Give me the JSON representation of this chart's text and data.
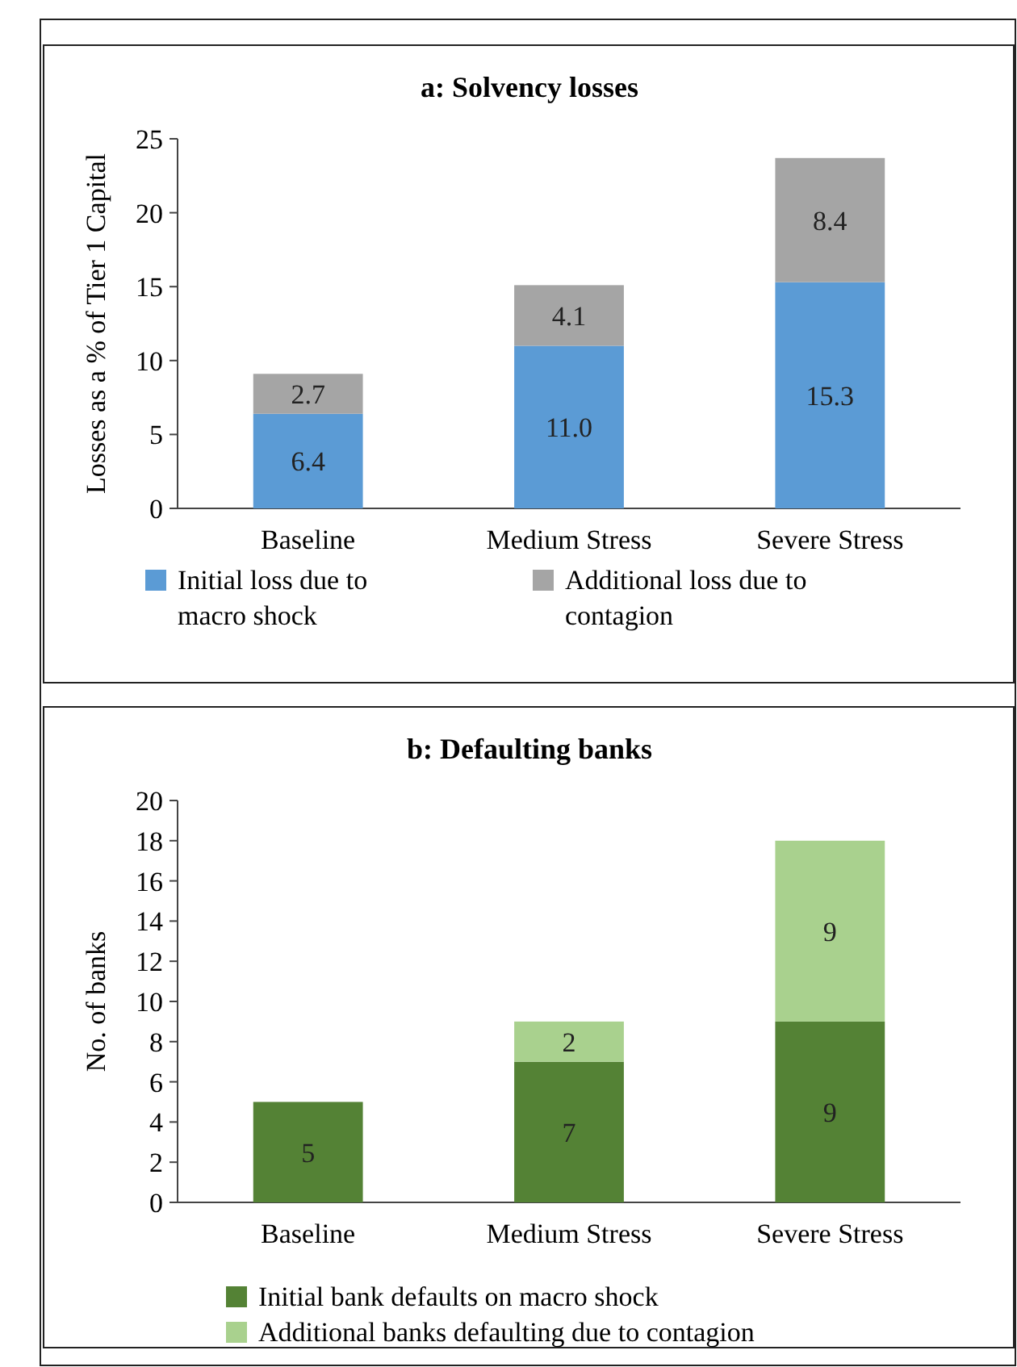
{
  "chart_data": [
    {
      "type": "bar",
      "title": "a: Solvency losses",
      "ylabel": "Losses as a % of Tier 1 Capital",
      "categories": [
        "Baseline",
        "Medium Stress",
        "Severe Stress"
      ],
      "stacked": true,
      "data_labels": true,
      "legend": "bottom",
      "ylim": [
        0,
        25
      ],
      "yticks": [
        0,
        5,
        10,
        15,
        20,
        25
      ],
      "series": [
        {
          "name": "Initial loss due to macro shock",
          "color": "#5b9bd5",
          "values": [
            6.4,
            11.0,
            15.3
          ],
          "value_labels": [
            "6.4",
            "11.0",
            "15.3"
          ]
        },
        {
          "name": "Additional loss due to contagion",
          "color": "#a5a5a5",
          "values": [
            2.7,
            4.1,
            8.4
          ],
          "value_labels": [
            "2.7",
            "4.1",
            "8.4"
          ]
        }
      ]
    },
    {
      "type": "bar",
      "title": "b: Defaulting banks",
      "ylabel": "No. of banks",
      "categories": [
        "Baseline",
        "Medium Stress",
        "Severe Stress"
      ],
      "stacked": true,
      "data_labels": true,
      "legend": "bottom",
      "ylim": [
        0,
        20
      ],
      "yticks": [
        0,
        2,
        4,
        6,
        8,
        10,
        12,
        14,
        16,
        18,
        20
      ],
      "series": [
        {
          "name": "Initial bank defaults on macro shock",
          "color": "#548235",
          "values": [
            5,
            7,
            9
          ]
        },
        {
          "name": "Additional banks defaulting due to contagion",
          "color": "#a9d18e",
          "values": [
            null,
            2,
            9
          ]
        }
      ]
    }
  ]
}
